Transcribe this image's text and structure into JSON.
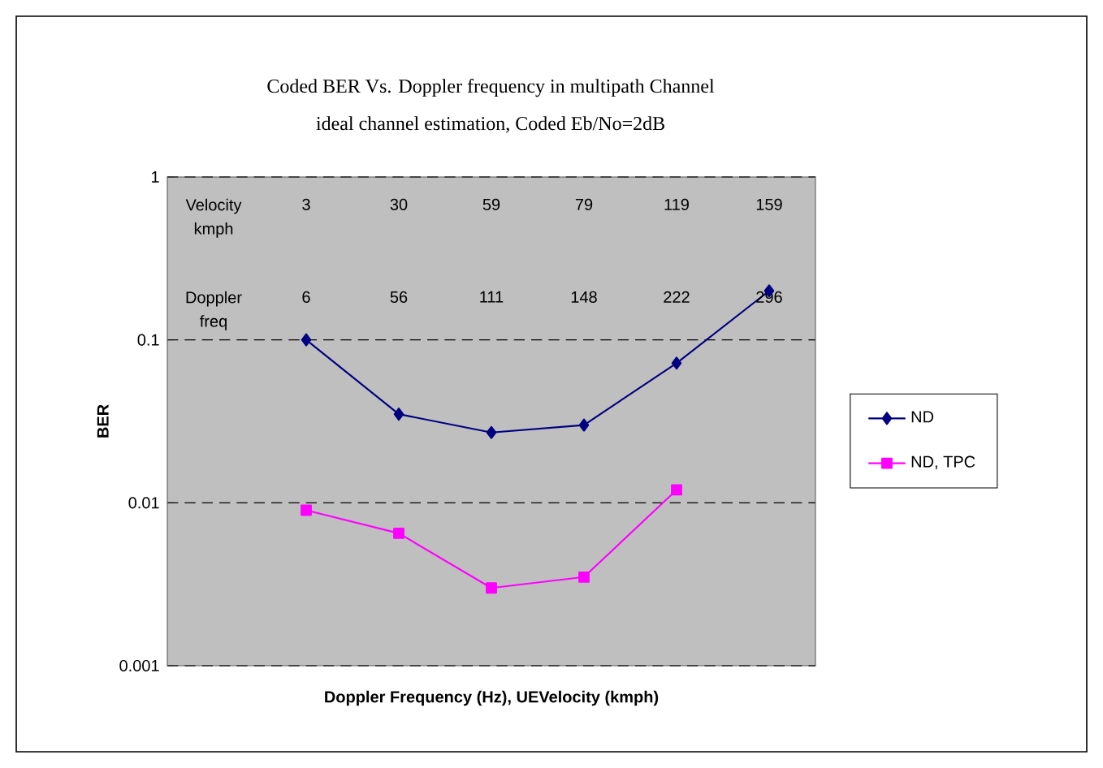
{
  "chart_data": {
    "type": "line",
    "title": "Coded BER Vs. Doppler frequency in multipath Channel",
    "subtitle": "ideal channel estimation, Coded Eb/No=2dB",
    "xlabel": "Doppler Frequency (Hz), UEVelocity (kmph)",
    "ylabel": "BER",
    "categories": [
      null,
      null,
      null,
      null,
      null,
      null
    ],
    "series": [
      {
        "name": "ND",
        "color": "#000080",
        "marker": "diamond",
        "values": [
          0.1,
          0.035,
          0.027,
          0.03,
          0.072,
          0.2
        ]
      },
      {
        "name": "ND, TPC",
        "color": "#ff00ff",
        "marker": "square",
        "values": [
          0.009,
          0.0065,
          0.003,
          0.0035,
          0.012,
          null
        ]
      }
    ],
    "log": "y",
    "ylim": [
      0.001,
      1
    ],
    "yticks": [
      {
        "value": 0.001,
        "label": "0.001"
      },
      {
        "value": 0.01,
        "label": "0.01"
      },
      {
        "value": 0.1,
        "label": "0.1"
      },
      {
        "value": 1,
        "label": "1"
      }
    ],
    "grid": "y",
    "legend": "right",
    "tick_labels": "y",
    "annotations": [
      "Velocity kmph",
      "3",
      "30",
      "59",
      "79",
      "119",
      "159",
      "Doppler freq",
      "6",
      "56",
      "111",
      "148",
      "222",
      "296"
    ]
  }
}
